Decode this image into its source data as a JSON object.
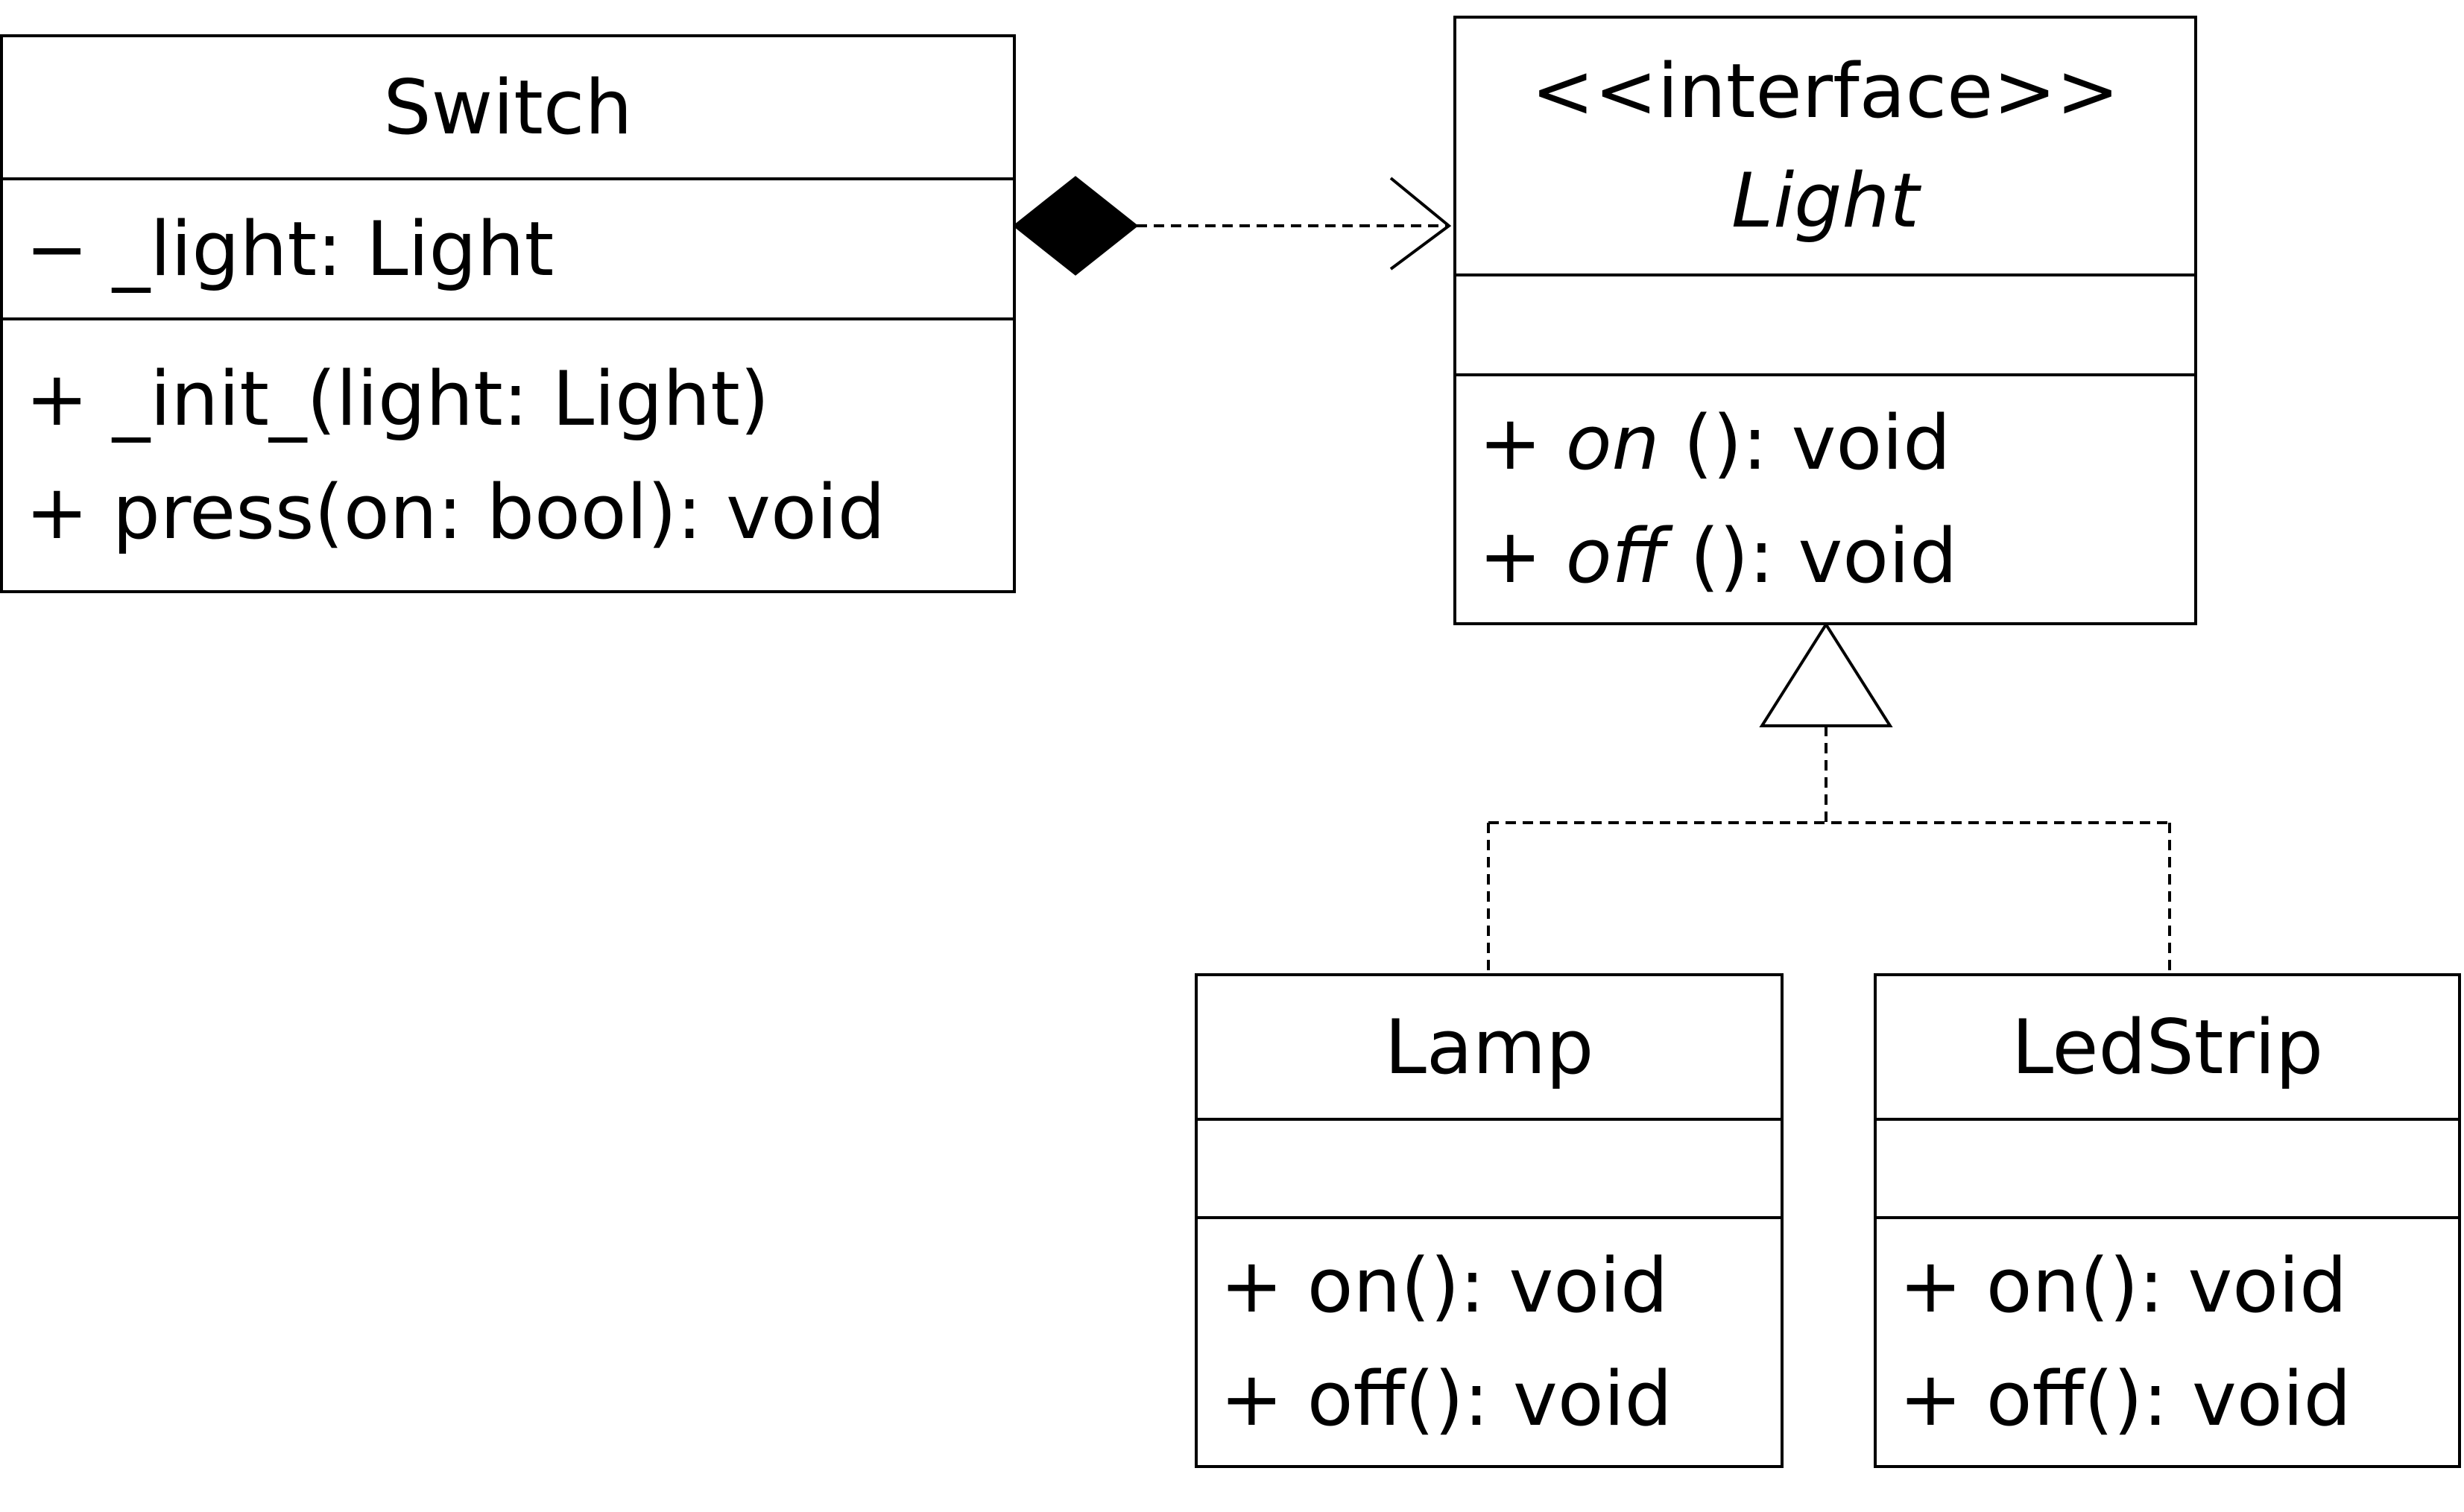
{
  "diagram": {
    "classes": {
      "switch": {
        "name": "Switch",
        "attributes": [
          {
            "vis": "−",
            "text": "_light: Light"
          }
        ],
        "methods": [
          {
            "vis": "+",
            "text": "_init_(light: Light)"
          },
          {
            "vis": "+",
            "text": "press(on: bool): void"
          }
        ]
      },
      "light": {
        "stereotype": "<<interface>>",
        "name": "Light",
        "abstract_name": true,
        "attributes": [],
        "methods": [
          {
            "vis": "+",
            "name": "on",
            "sig": " (): void",
            "abstract": true
          },
          {
            "vis": "+",
            "name": "off",
            "sig": " (): void",
            "abstract": true
          }
        ]
      },
      "lamp": {
        "name": "Lamp",
        "attributes": [],
        "methods": [
          {
            "vis": "+",
            "text": "on(): void"
          },
          {
            "vis": "+",
            "text": "off(): void"
          }
        ]
      },
      "ledstrip": {
        "name": "LedStrip",
        "attributes": [],
        "methods": [
          {
            "vis": "+",
            "text": "on(): void"
          },
          {
            "vis": "+",
            "text": "off(): void"
          }
        ]
      }
    },
    "relations": [
      {
        "type": "composition-dependency",
        "from": "Switch",
        "to": "Light",
        "line": "dashed"
      },
      {
        "type": "realization",
        "from": "Lamp",
        "to": "Light",
        "line": "dashed"
      },
      {
        "type": "realization",
        "from": "LedStrip",
        "to": "Light",
        "line": "dashed"
      }
    ],
    "colors": {
      "stroke": "#000000",
      "background": "#ffffff"
    }
  }
}
